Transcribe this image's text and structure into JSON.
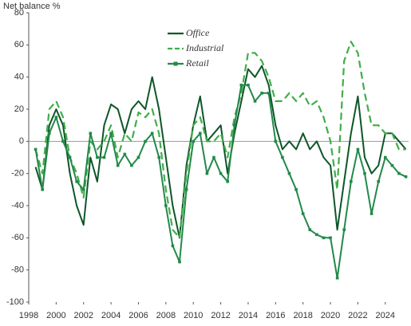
{
  "chart_data": {
    "type": "line",
    "y_label": "Net balance %",
    "x": [
      1998.5,
      1999,
      1999.5,
      2000,
      2000.5,
      2001,
      2001.5,
      2002,
      2002.5,
      2003,
      2003.5,
      2004,
      2004.5,
      2005,
      2005.5,
      2006,
      2006.5,
      2007,
      2007.5,
      2008,
      2008.5,
      2009,
      2009.5,
      2010,
      2010.5,
      2011,
      2011.5,
      2012,
      2012.5,
      2013,
      2013.5,
      2014,
      2014.5,
      2015,
      2015.5,
      2016,
      2016.5,
      2017,
      2017.5,
      2018,
      2018.5,
      2019,
      2019.5,
      2020,
      2020.5,
      2021,
      2021.5,
      2022,
      2022.5,
      2023,
      2023.5,
      2024,
      2024.5,
      2025,
      2025.5
    ],
    "series": [
      {
        "name": "Office",
        "color": "#0d5628",
        "style": "solid",
        "values": [
          -16,
          -30,
          10,
          20,
          10,
          -20,
          -40,
          -52,
          -10,
          -25,
          10,
          23,
          20,
          5,
          20,
          25,
          20,
          40,
          20,
          -10,
          -40,
          -60,
          -15,
          10,
          28,
          0,
          5,
          10,
          -20,
          5,
          25,
          45,
          40,
          47,
          35,
          10,
          -5,
          0,
          -5,
          5,
          -5,
          0,
          -10,
          -15,
          -55,
          -25,
          5,
          28,
          -10,
          -20,
          -15,
          5,
          5,
          0,
          -5
        ]
      },
      {
        "name": "Industrial",
        "color": "#3fae49",
        "style": "dashed",
        "values": [
          -5,
          -20,
          20,
          25,
          15,
          -10,
          -20,
          -35,
          0,
          -5,
          0,
          10,
          -10,
          5,
          0,
          18,
          15,
          20,
          5,
          -30,
          -55,
          -60,
          -20,
          10,
          15,
          0,
          0,
          5,
          -10,
          15,
          30,
          55,
          55,
          50,
          40,
          25,
          25,
          30,
          25,
          30,
          22,
          25,
          15,
          0,
          -30,
          50,
          62,
          55,
          30,
          10,
          10,
          5,
          5,
          -5,
          -5
        ]
      },
      {
        "name": "Retail",
        "color": "#23894a",
        "style": "markers",
        "values": [
          -5,
          -30,
          5,
          15,
          0,
          -10,
          -25,
          -30,
          5,
          -10,
          -10,
          5,
          -15,
          -8,
          -15,
          -10,
          0,
          5,
          -10,
          -40,
          -65,
          -75,
          -30,
          0,
          5,
          -20,
          -10,
          -20,
          -25,
          10,
          35,
          35,
          25,
          30,
          30,
          0,
          -10,
          -20,
          -30,
          -45,
          -55,
          -58,
          -60,
          -60,
          -85,
          -55,
          -25,
          -5,
          -20,
          -45,
          -25,
          -10,
          -15,
          -20,
          -22
        ]
      }
    ],
    "xlim": [
      1998,
      2025.7
    ],
    "xticks": [
      1998,
      2000,
      2002,
      2004,
      2006,
      2008,
      2010,
      2012,
      2014,
      2016,
      2018,
      2020,
      2022,
      2024
    ],
    "ylim": [
      -100,
      80
    ],
    "yticks": [
      -100,
      -80,
      -60,
      -40,
      -20,
      0,
      20,
      40,
      60,
      80
    ],
    "zero_line": true
  }
}
